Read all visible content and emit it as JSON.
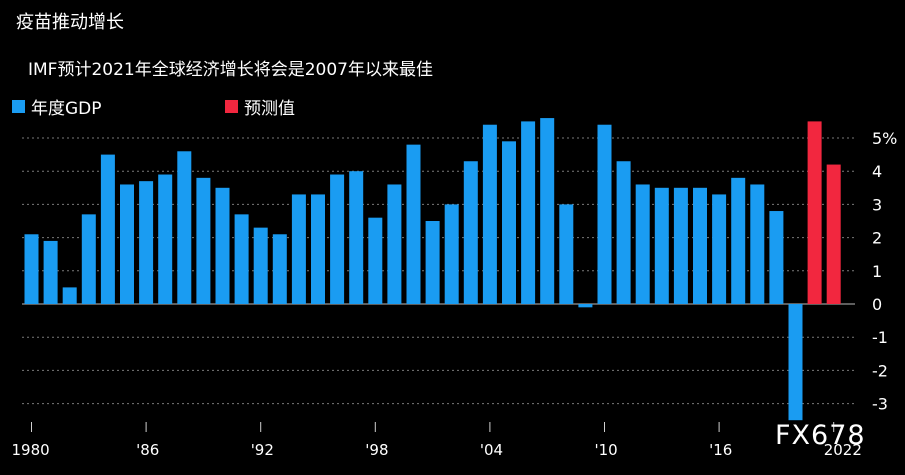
{
  "title": "疫苗推动增长",
  "subtitle": "IMF预计2021年全球经济增长将会是2007年以来最佳",
  "watermark": "FX678",
  "colors": {
    "historical": "#1a9cf2",
    "forecast": "#f2273f",
    "grid": "#7a7a7a",
    "zero": "#bdbdbd"
  },
  "chart_data": {
    "type": "bar",
    "title": "疫苗推动增长",
    "subtitle": "IMF预计2021年全球经济增长将会是2007年以来最佳",
    "xlabel": "",
    "ylabel": "",
    "ylim": [
      -3.5,
      5.6
    ],
    "y_ticks": [
      5,
      4,
      3,
      2,
      1,
      0,
      -1,
      -2,
      -3
    ],
    "y_tick_labels": [
      "5%",
      "4",
      "3",
      "2",
      "1",
      "0",
      "-1",
      "-2",
      "-3"
    ],
    "x_tick_labels": [
      {
        "year": 1980,
        "label": "1980"
      },
      {
        "year": 1986,
        "label": "'86"
      },
      {
        "year": 1992,
        "label": "'92"
      },
      {
        "year": 1998,
        "label": "'98"
      },
      {
        "year": 2004,
        "label": "'04"
      },
      {
        "year": 2010,
        "label": "'10"
      },
      {
        "year": 2016,
        "label": "'16"
      },
      {
        "year": 2022,
        "label": "2022"
      }
    ],
    "grid": true,
    "legend_position": "top-left",
    "series": [
      {
        "name": "年度GDP",
        "color": "#1a9cf2",
        "x": [
          1980,
          1981,
          1982,
          1983,
          1984,
          1985,
          1986,
          1987,
          1988,
          1989,
          1990,
          1991,
          1992,
          1993,
          1994,
          1995,
          1996,
          1997,
          1998,
          1999,
          2000,
          2001,
          2002,
          2003,
          2004,
          2005,
          2006,
          2007,
          2008,
          2009,
          2010,
          2011,
          2012,
          2013,
          2014,
          2015,
          2016,
          2017,
          2018,
          2019,
          2020
        ],
        "values": [
          2.1,
          1.9,
          0.5,
          2.7,
          4.5,
          3.6,
          3.7,
          3.9,
          4.6,
          3.8,
          3.5,
          2.7,
          2.3,
          2.1,
          3.3,
          3.3,
          3.9,
          4.0,
          2.6,
          3.6,
          4.8,
          2.5,
          3.0,
          4.3,
          5.4,
          4.9,
          5.5,
          5.6,
          3.0,
          -0.1,
          5.4,
          4.3,
          3.6,
          3.5,
          3.5,
          3.5,
          3.3,
          3.8,
          3.6,
          2.8,
          -3.5
        ]
      },
      {
        "name": "预测值",
        "color": "#f2273f",
        "x": [
          2021,
          2022
        ],
        "values": [
          5.5,
          4.2
        ]
      }
    ]
  }
}
